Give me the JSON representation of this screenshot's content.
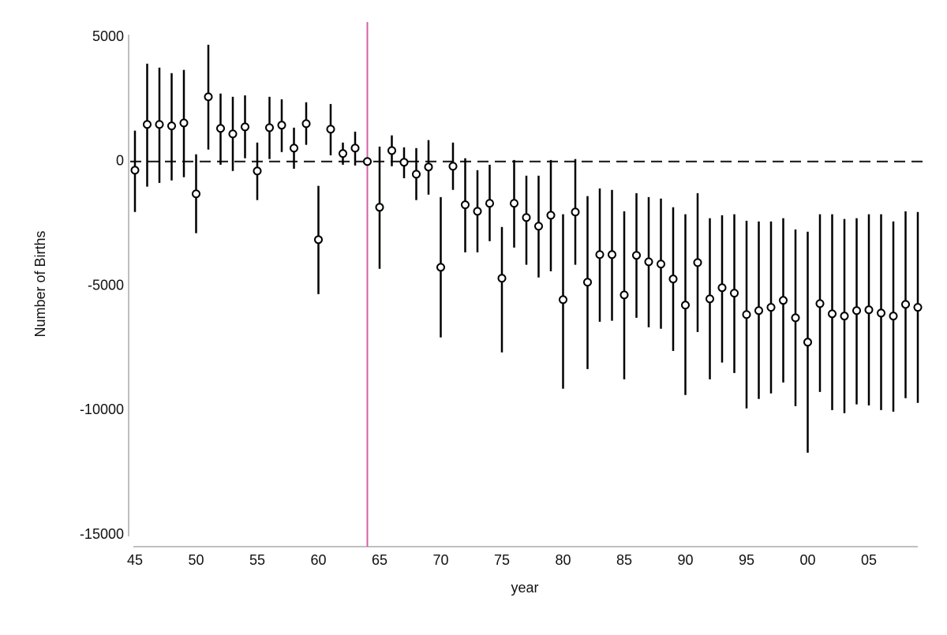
{
  "chart_data": {
    "type": "errorbar",
    "x_label": "year",
    "y_label": "Number of Births",
    "xlim": [
      1945,
      2009
    ],
    "ylim": [
      -15000,
      5000
    ],
    "xticks": [
      {
        "value": 1945,
        "label": "45"
      },
      {
        "value": 1950,
        "label": "50"
      },
      {
        "value": 1955,
        "label": "55"
      },
      {
        "value": 1960,
        "label": "60"
      },
      {
        "value": 1965,
        "label": "65"
      },
      {
        "value": 1970,
        "label": "70"
      },
      {
        "value": 1975,
        "label": "75"
      },
      {
        "value": 1980,
        "label": "80"
      },
      {
        "value": 1985,
        "label": "85"
      },
      {
        "value": 1990,
        "label": "90"
      },
      {
        "value": 1995,
        "label": "95"
      },
      {
        "value": 2000,
        "label": "00"
      },
      {
        "value": 2005,
        "label": "05"
      }
    ],
    "yticks": [
      5000,
      0,
      -5000,
      -10000,
      -15000
    ],
    "grid": false,
    "hline": 0,
    "vline": 1964,
    "vline_color": "#d45fa8",
    "color": "#000000",
    "x": [
      1945,
      1946,
      1947,
      1948,
      1949,
      1950,
      1951,
      1952,
      1953,
      1954,
      1955,
      1956,
      1957,
      1958,
      1959,
      1960,
      1961,
      1962,
      1963,
      1964,
      1965,
      1966,
      1967,
      1968,
      1969,
      1970,
      1971,
      1972,
      1973,
      1974,
      1975,
      1976,
      1977,
      1978,
      1979,
      1980,
      1981,
      1982,
      1983,
      1984,
      1985,
      1986,
      1987,
      1988,
      1989,
      1990,
      1991,
      1992,
      1993,
      1994,
      1995,
      1996,
      1997,
      1998,
      1999,
      2000,
      2001,
      2002,
      2003,
      2004,
      2005,
      2006,
      2007,
      2008,
      2009
    ],
    "values": [
      -350,
      1490,
      1490,
      1430,
      1550,
      -1300,
      2600,
      1330,
      1110,
      1390,
      -380,
      1360,
      1460,
      540,
      1520,
      -3140,
      1300,
      320,
      540,
      0,
      -1840,
      440,
      -30,
      -510,
      -220,
      -4250,
      -190,
      -1740,
      -2000,
      -1680,
      -4690,
      -1680,
      -2250,
      -2600,
      -2160,
      -5550,
      -2030,
      -4850,
      -3740,
      -3740,
      -5360,
      -3770,
      -4030,
      -4120,
      -4720,
      -5770,
      -4060,
      -5520,
      -5070,
      -5290,
      -6150,
      -5990,
      -5860,
      -5580,
      -6280,
      -7260,
      -5710,
      -6120,
      -6210,
      -5990,
      -5960,
      -6090,
      -6210,
      -5740,
      -5860
    ],
    "upper": [
      1240,
      3930,
      3770,
      3550,
      3680,
      290,
      4690,
      2730,
      2600,
      2660,
      760,
      2600,
      2500,
      1360,
      2380,
      -980,
      2310,
      760,
      1200,
      null,
      600,
      1050,
      570,
      540,
      860,
      -1430,
      760,
      130,
      -350,
      -130,
      -2630,
      60,
      -570,
      -570,
      60,
      -2120,
      100,
      -1390,
      -1080,
      -1140,
      -2000,
      -1270,
      -1430,
      -1490,
      -1840,
      -2120,
      -1270,
      -2280,
      -2160,
      -2120,
      -2380,
      -2410,
      -2410,
      -2280,
      -2730,
      -2820,
      -2120,
      -2120,
      -2310,
      -2280,
      -2120,
      -2120,
      -2410,
      -2000,
      -2030
    ],
    "lower": [
      -2030,
      -1010,
      -860,
      -760,
      -630,
      -2880,
      480,
      -130,
      -380,
      130,
      -1550,
      100,
      380,
      -290,
      670,
      -5330,
      250,
      -130,
      -160,
      null,
      -4310,
      -190,
      -670,
      -1550,
      -1330,
      -7070,
      -1140,
      -3650,
      -3650,
      -3200,
      -7670,
      -3460,
      -4150,
      -4660,
      -4410,
      -9130,
      -4150,
      -8340,
      -6440,
      -6400,
      -8750,
      -6280,
      -6660,
      -6720,
      -7610,
      -9380,
      -6850,
      -8750,
      -8080,
      -8500,
      -9920,
      -9540,
      -9320,
      -8880,
      -9830,
      -11700,
      -9260,
      -9990,
      -10110,
      -9760,
      -9800,
      -9990,
      -10050,
      -9510,
      -9700
    ]
  }
}
